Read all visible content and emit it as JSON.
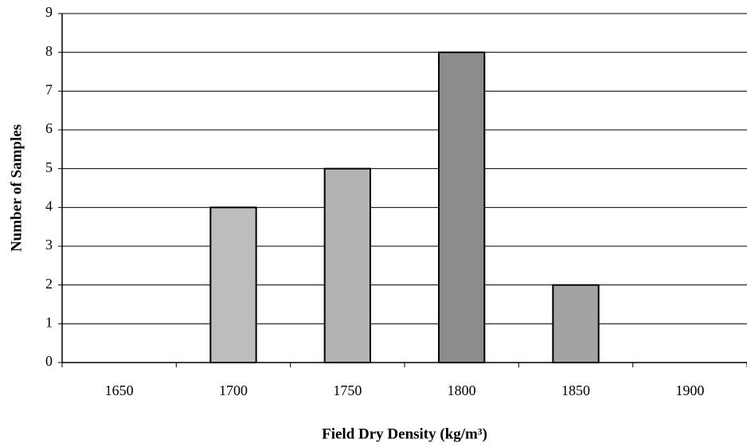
{
  "chart_data": {
    "type": "bar",
    "xlabel": "Field Dry Density (kg/m³)",
    "ylabel": "Number of Samples",
    "categories": [
      "1650",
      "1700",
      "1750",
      "1800",
      "1850",
      "1900"
    ],
    "values": [
      0,
      4,
      5,
      8,
      2,
      0
    ],
    "colors": [
      "#b5b5b5",
      "#bdbdbd",
      "#b3b3b3",
      "#8c8c8c",
      "#a3a3a3",
      "#b5b5b5"
    ],
    "ylim": [
      0,
      9
    ],
    "yticks": [
      0,
      1,
      2,
      3,
      4,
      5,
      6,
      7,
      8,
      9
    ],
    "grid": true
  }
}
